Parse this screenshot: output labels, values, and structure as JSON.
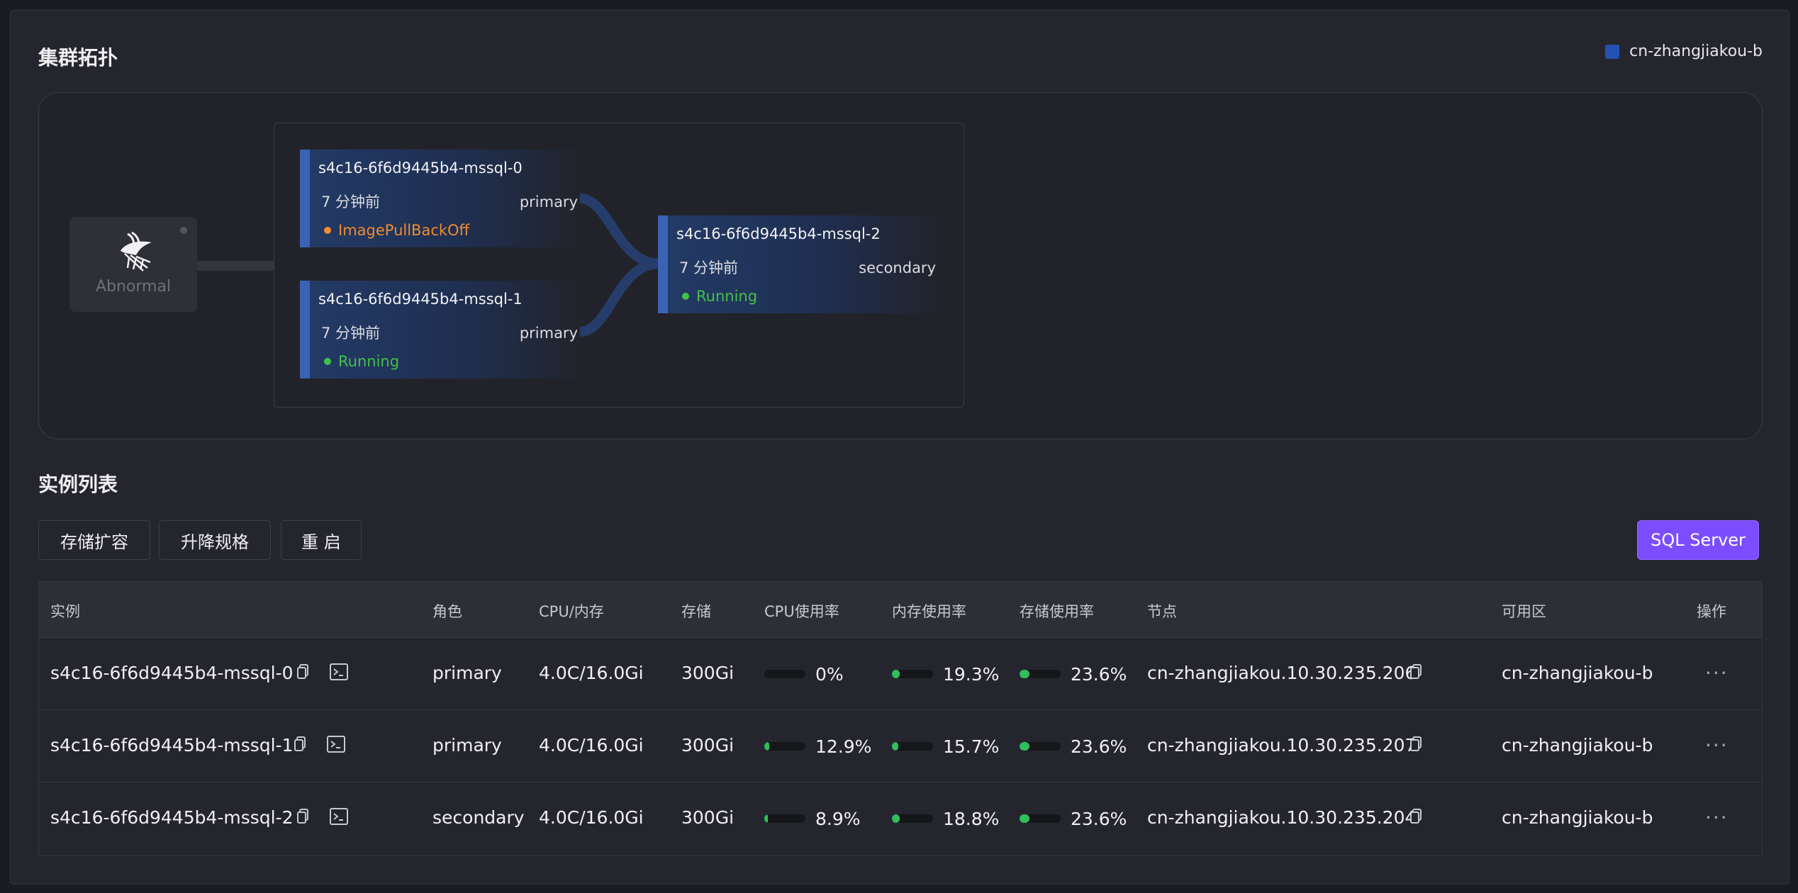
{
  "topology": {
    "title": "集群拓扑",
    "zone_legend": {
      "label": "cn-zhangjiakou-b",
      "color": "#2451b3"
    },
    "root": {
      "status_label": "Abnormal",
      "icon": "sql-server-logo"
    },
    "nodes": [
      {
        "name": "s4c16-6f6d9445b4-mssql-0",
        "age": "7 分钟前",
        "role": "primary",
        "status": "ImagePullBackOff",
        "status_color": "#f08b2e"
      },
      {
        "name": "s4c16-6f6d9445b4-mssql-1",
        "age": "7 分钟前",
        "role": "primary",
        "status": "Running",
        "status_color": "#43c04a"
      },
      {
        "name": "s4c16-6f6d9445b4-mssql-2",
        "age": "7 分钟前",
        "role": "secondary",
        "status": "Running",
        "status_color": "#43c04a"
      }
    ]
  },
  "instances": {
    "title": "实例列表",
    "actions": {
      "expand_storage": "存储扩容",
      "resize": "升降规格",
      "restart": "重 启"
    },
    "engine_button": "SQL Server",
    "columns": [
      "实例",
      "角色",
      "CPU/内存",
      "存储",
      "CPU使用率",
      "内存使用率",
      "存储使用率",
      "节点",
      "可用区",
      "操作"
    ],
    "rows": [
      {
        "name": "s4c16-6f6d9445b4-mssql-0",
        "role": "primary",
        "cpu_mem": "4.0C/16.0Gi",
        "storage": "300Gi",
        "cpu_usage": "0%",
        "cpu_value": 0,
        "mem_usage": "19.3%",
        "mem_value": 19.3,
        "disk_usage": "23.6%",
        "disk_value": 23.6,
        "node": "cn-zhangjiakou.10.30.235.206",
        "zone": "cn-zhangjiakou-b",
        "more": "···"
      },
      {
        "name": "s4c16-6f6d9445b4-mssql-1",
        "role": "primary",
        "cpu_mem": "4.0C/16.0Gi",
        "storage": "300Gi",
        "cpu_usage": "12.9%",
        "cpu_value": 12.9,
        "mem_usage": "15.7%",
        "mem_value": 15.7,
        "disk_usage": "23.6%",
        "disk_value": 23.6,
        "node": "cn-zhangjiakou.10.30.235.207",
        "zone": "cn-zhangjiakou-b",
        "more": "···"
      },
      {
        "name": "s4c16-6f6d9445b4-mssql-2",
        "role": "secondary",
        "cpu_mem": "4.0C/16.0Gi",
        "storage": "300Gi",
        "cpu_usage": "8.9%",
        "cpu_value": 8.9,
        "mem_usage": "18.8%",
        "mem_value": 18.8,
        "disk_usage": "23.6%",
        "disk_value": 23.6,
        "node": "cn-zhangjiakou.10.30.235.204",
        "zone": "cn-zhangjiakou-b",
        "more": "···"
      }
    ]
  }
}
